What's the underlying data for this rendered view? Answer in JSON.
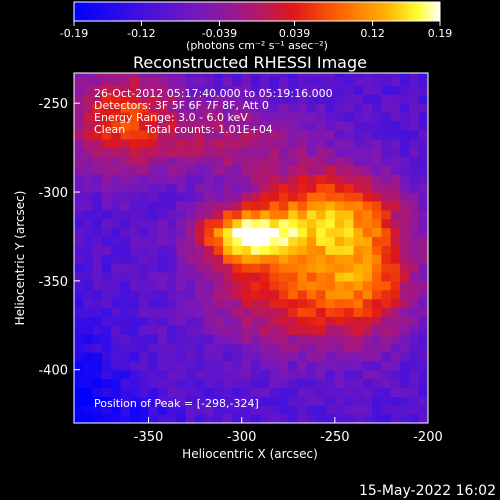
{
  "chart_data": {
    "type": "heatmap",
    "title": "Reconstructed RHESSI Image",
    "xlabel": "Heliocentric X (arcsec)",
    "ylabel": "Heliocentric Y (arcsec)",
    "xlim": [
      -390,
      -200
    ],
    "ylim": [
      -430,
      -233
    ],
    "x_ticks": [
      -350,
      -300,
      -250,
      -200
    ],
    "y_ticks": [
      -250,
      -300,
      -350,
      -400
    ],
    "grid": false,
    "colorbar": {
      "ticks": [
        -0.19,
        -0.12,
        -0.039,
        0.039,
        0.12,
        0.19
      ],
      "tick_labels": [
        "-0.19",
        "-0.12",
        "-0.039",
        "0.039",
        "0.12",
        "0.19"
      ],
      "range": [
        -0.19,
        0.19
      ],
      "units_label": "(photons cm⁻² s⁻¹ asec⁻²)",
      "colormap": "rainbow (blue → purple → red → orange → yellow → white)"
    },
    "peak": {
      "x": -298,
      "y": -324
    },
    "annotations": [
      "26-Oct-2012 05:17:40.000 to 05:19:16.000",
      "Detectors: 3F 5F 6F 7F 8F, Att 0",
      "Energy Range: 3.0 - 6.0 keV",
      "Clean",
      "Total counts: 1.01E+04",
      "Position of Peak = [-298,-324]"
    ],
    "sources": [
      {
        "x": -298,
        "y": -324,
        "peak": 0.19,
        "sx": 18,
        "sy": 11
      },
      {
        "x": -255,
        "y": -310,
        "peak": 0.13,
        "sx": 26,
        "sy": 18
      },
      {
        "x": -272,
        "y": -355,
        "peak": 0.11,
        "sx": 32,
        "sy": 24
      },
      {
        "x": -232,
        "y": -345,
        "peak": 0.09,
        "sx": 20,
        "sy": 26
      },
      {
        "x": -365,
        "y": -258,
        "peak": 0.11,
        "sx": 22,
        "sy": 22
      },
      {
        "x": -305,
        "y": -270,
        "peak": 0.05,
        "sx": 30,
        "sy": 16
      }
    ],
    "background_level": -0.1
  },
  "footer": {
    "timestamp": "15-May-2022 16:02"
  }
}
